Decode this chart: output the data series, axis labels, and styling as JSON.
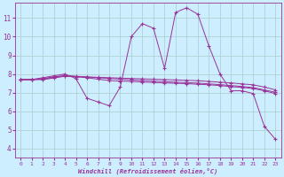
{
  "xlabel": "Windchill (Refroidissement éolien,°C)",
  "bg_color": "#cceeff",
  "line_color": "#993399",
  "grid_color": "#aacccc",
  "xlim": [
    -0.5,
    23.5
  ],
  "ylim": [
    3.5,
    11.8
  ],
  "yticks": [
    4,
    5,
    6,
    7,
    8,
    9,
    10,
    11
  ],
  "xticks": [
    0,
    1,
    2,
    3,
    4,
    5,
    6,
    7,
    8,
    9,
    10,
    11,
    12,
    13,
    14,
    15,
    16,
    17,
    18,
    19,
    20,
    21,
    22,
    23
  ],
  "series": [
    [
      7.7,
      7.7,
      7.8,
      7.9,
      8.0,
      7.75,
      6.7,
      6.5,
      6.3,
      7.3,
      10.0,
      10.7,
      10.45,
      8.3,
      11.3,
      11.55,
      11.2,
      9.5,
      8.0,
      7.1,
      7.1,
      6.95,
      5.2,
      4.5
    ],
    [
      7.7,
      7.7,
      7.75,
      7.85,
      7.9,
      7.85,
      7.8,
      7.72,
      7.65,
      7.62,
      7.6,
      7.57,
      7.54,
      7.52,
      7.5,
      7.48,
      7.45,
      7.42,
      7.38,
      7.32,
      7.28,
      7.22,
      7.1,
      6.95
    ],
    [
      7.7,
      7.7,
      7.72,
      7.82,
      7.92,
      7.88,
      7.84,
      7.8,
      7.76,
      7.72,
      7.68,
      7.65,
      7.62,
      7.59,
      7.56,
      7.54,
      7.51,
      7.47,
      7.43,
      7.38,
      7.33,
      7.27,
      7.15,
      7.02
    ],
    [
      7.7,
      7.7,
      7.7,
      7.78,
      7.88,
      7.86,
      7.84,
      7.82,
      7.8,
      7.78,
      7.76,
      7.74,
      7.72,
      7.7,
      7.68,
      7.66,
      7.64,
      7.6,
      7.56,
      7.52,
      7.47,
      7.42,
      7.3,
      7.15
    ]
  ]
}
